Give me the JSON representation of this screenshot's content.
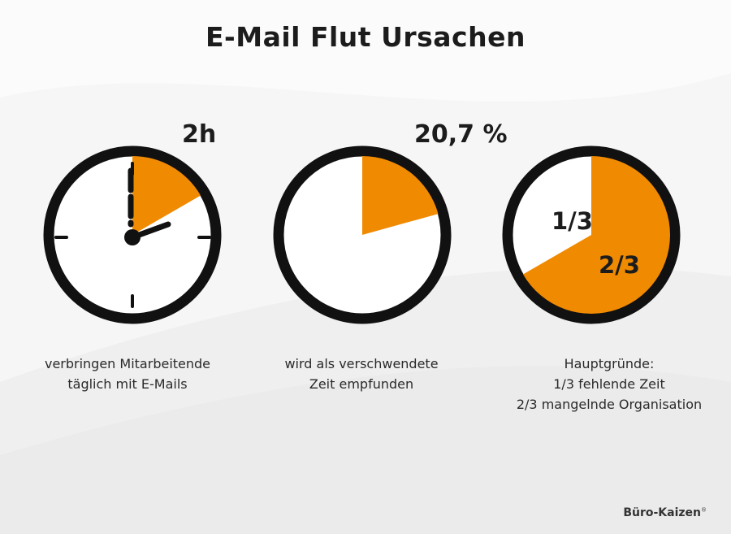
{
  "title": "E-Mail Flut Ursachen",
  "accent_color": "#f08a00",
  "ring_color": "#111111",
  "panels": [
    {
      "stat": "2h",
      "caption": [
        "verbringen Mitarbeitende",
        "täglich mit E-Mails"
      ],
      "fill_fraction": 0.1667
    },
    {
      "stat": "20,7 %",
      "caption": [
        "wird als verschwendete",
        "Zeit empfunden"
      ],
      "fill_fraction": 0.207
    },
    {
      "inner_labels": {
        "minor": "1/3",
        "major": "2/3"
      },
      "caption": [
        "Hauptgründe:",
        "1/3 fehlende Zeit",
        "2/3 mangelnde Organisation"
      ],
      "fill_fraction": 0.6667
    }
  ],
  "brand": {
    "name": "Büro-Kaizen",
    "mark": "®"
  }
}
